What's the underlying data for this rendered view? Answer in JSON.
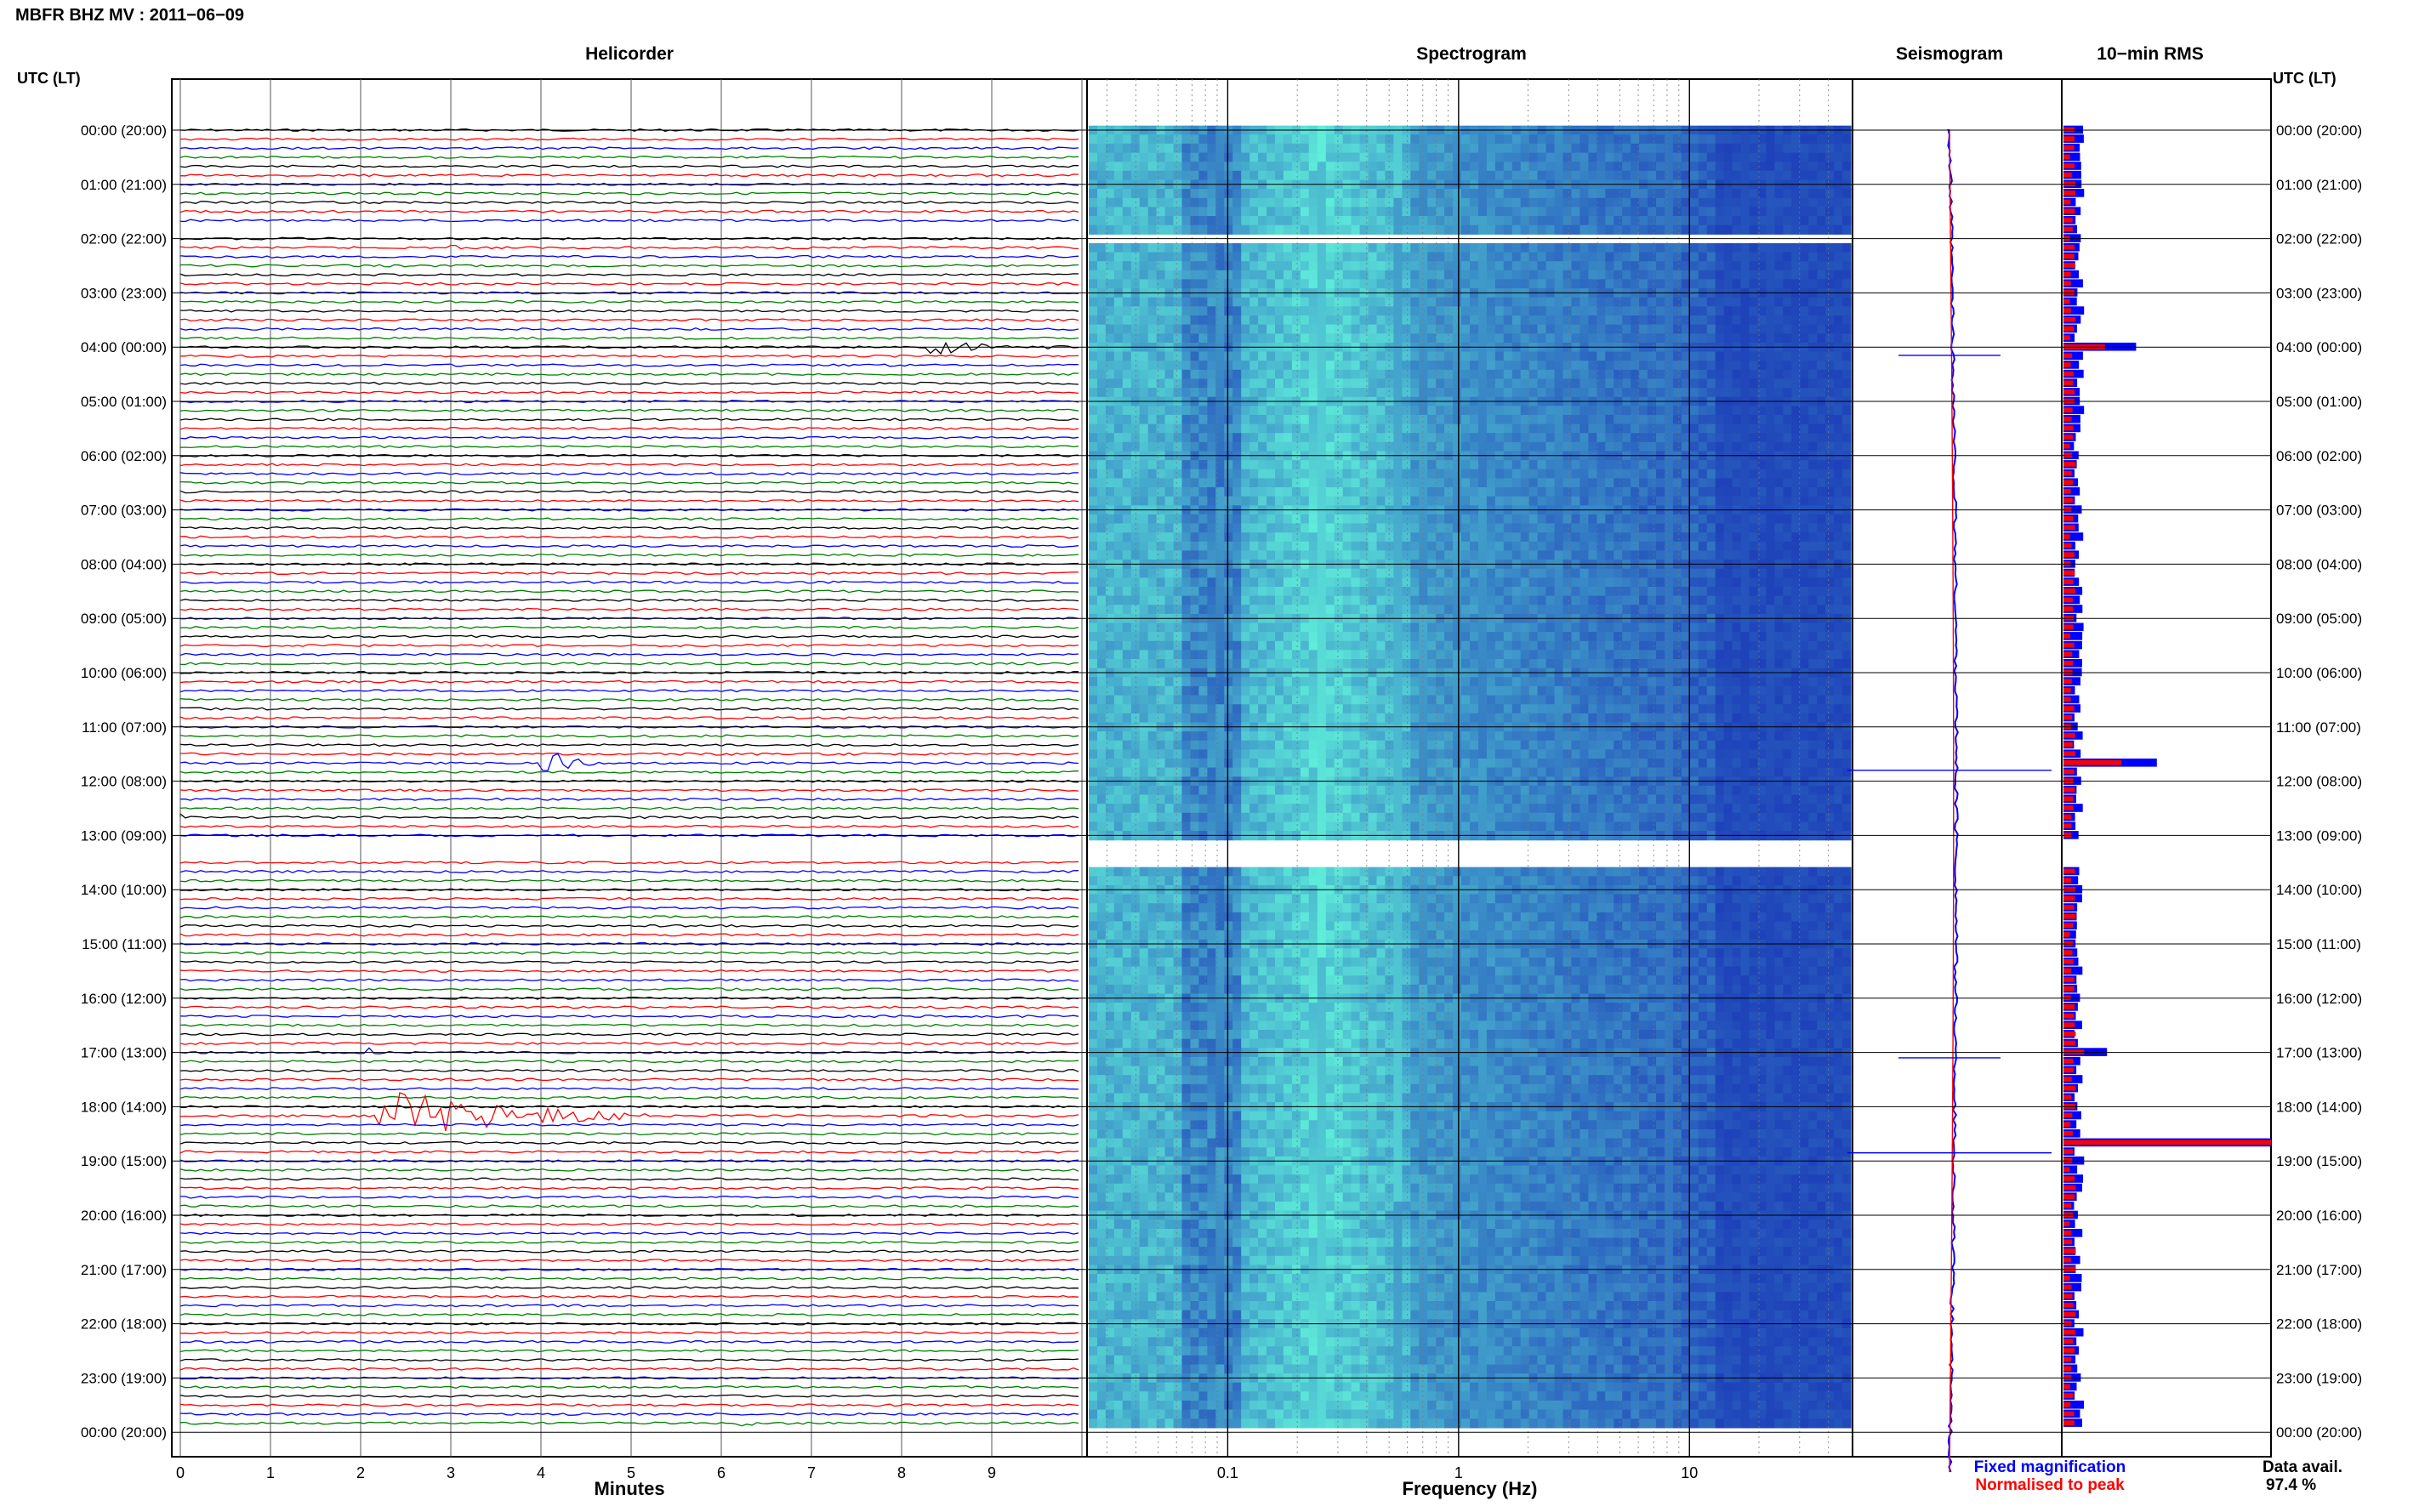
{
  "header": {
    "title": "MBFR BHZ MV : 2011−06−09"
  },
  "panels": {
    "helicorder": "Helicorder",
    "spectrogram": "Spectrogram",
    "seismogram": "Seismogram",
    "rms": "10−min RMS"
  },
  "axis": {
    "left_title": "UTC (LT)",
    "right_title": "UTC (LT)",
    "minutes_label": "Minutes",
    "frequency_label": "Frequency (Hz)"
  },
  "time_labels": [
    "00:00 (20:00)",
    "01:00 (21:00)",
    "02:00 (22:00)",
    "03:00 (23:00)",
    "04:00 (00:00)",
    "05:00 (01:00)",
    "06:00 (02:00)",
    "07:00 (03:00)",
    "08:00 (04:00)",
    "09:00 (05:00)",
    "10:00 (06:00)",
    "11:00 (07:00)",
    "12:00 (08:00)",
    "13:00 (09:00)",
    "14:00 (10:00)",
    "15:00 (11:00)",
    "16:00 (12:00)",
    "17:00 (13:00)",
    "18:00 (14:00)",
    "19:00 (15:00)",
    "20:00 (16:00)",
    "21:00 (17:00)",
    "22:00 (18:00)",
    "23:00 (19:00)",
    "00:00 (20:00)"
  ],
  "minute_ticks": [
    "0",
    "1",
    "2",
    "3",
    "4",
    "5",
    "6",
    "7",
    "8",
    "9"
  ],
  "frequency_ticks": [
    "0.1",
    "1",
    "10"
  ],
  "legend": {
    "fixed": "Fixed magnification",
    "normalised": "Normalised to peak",
    "fixed_color": "#0000ff",
    "normalised_color": "#ff0000"
  },
  "data_avail": {
    "label": "Data avail.",
    "value": "97.4 %"
  },
  "colors": {
    "trace_cycle": [
      "#000000",
      "#ff0000",
      "#0000ff",
      "#008000"
    ],
    "rms_fixed": "#0000ff",
    "rms_normalised": "#ff0000"
  },
  "chart_data": [
    {
      "type": "line",
      "title": "Helicorder",
      "xlabel": "Minutes",
      "xlim": [
        0,
        10
      ],
      "rows_per_hour": 6,
      "y": [
        "00:00 (20:00)",
        "24:00 (20:00)"
      ],
      "events": [
        {
          "time": "02:10",
          "minute": 3.0,
          "amplitude": "small"
        },
        {
          "time": "04:00",
          "minute": 8.3,
          "amplitude": "medium",
          "duration_min": 1.5
        },
        {
          "time": "11:40",
          "minute": 4.0,
          "amplitude": "large",
          "duration_min": 0.6
        },
        {
          "time": "12:40",
          "minute": 0.0,
          "amplitude": "small"
        },
        {
          "time": "17:00",
          "minute": 2.0,
          "amplitude": "medium"
        },
        {
          "time": "18:10",
          "minute": 2.2,
          "amplitude": "very large",
          "duration_min": 3.0
        },
        {
          "time": "23:50",
          "minute": 6.2,
          "amplitude": "small"
        }
      ],
      "data_gaps": [
        "01:45-02:05",
        "12:55-13:35"
      ]
    },
    {
      "type": "heatmap",
      "title": "Spectrogram",
      "xlabel": "Frequency (Hz)",
      "x_scale": "log",
      "xlim": [
        0.025,
        50
      ],
      "rows": 144
    },
    {
      "type": "bar",
      "title": "10−min RMS",
      "orientation": "horizontal",
      "series": [
        {
          "name": "Fixed magnification"
        },
        {
          "name": "Normalised to peak"
        }
      ],
      "peaks": [
        {
          "time": "04:00",
          "fixed": 0.35,
          "normalised": 0.2
        },
        {
          "time": "11:40",
          "fixed": 0.45,
          "normalised": 0.28
        },
        {
          "time": "17:00",
          "fixed": 0.21,
          "normalised": 0.1
        },
        {
          "time": "18:40",
          "fixed": 1.0,
          "normalised": 1.0
        }
      ]
    }
  ]
}
